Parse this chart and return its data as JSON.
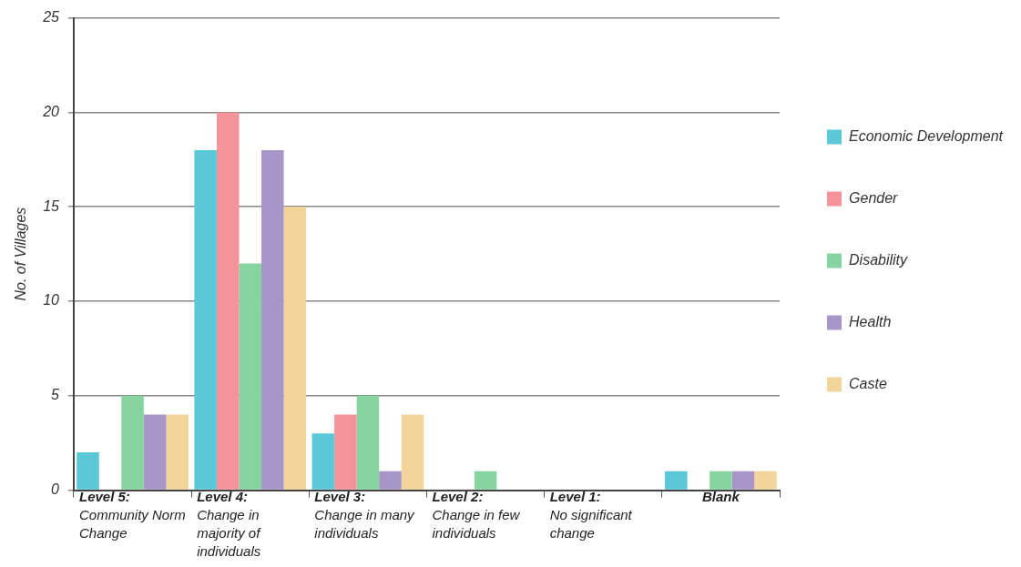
{
  "chart_data": {
    "type": "bar",
    "ylabel": "No. of Villages",
    "categories": [
      "Level 5: Community Norm Change",
      "Level 4: Change in majority of individuals",
      "Level 3: Change in many individuals",
      "Level 2: Change in few individuals",
      "Level 1: No significant change",
      "Blank"
    ],
    "series": [
      {
        "name": "Economic Development",
        "color": "#5bc8d8",
        "values": [
          2,
          18,
          3,
          0,
          0,
          1
        ]
      },
      {
        "name": "Gender",
        "color": "#f4939a",
        "values": [
          0,
          20,
          4,
          0,
          0,
          0
        ]
      },
      {
        "name": "Disability",
        "color": "#86d4a0",
        "values": [
          5,
          12,
          5,
          1,
          0,
          1
        ]
      },
      {
        "name": "Health",
        "color": "#a996c8",
        "values": [
          4,
          18,
          1,
          0,
          0,
          1
        ]
      },
      {
        "name": "Caste",
        "color": "#f1d59a",
        "values": [
          4,
          15,
          4,
          0,
          0,
          1
        ]
      }
    ],
    "ylim": [
      0,
      25
    ],
    "yticks": [
      0,
      5,
      10,
      15,
      20,
      25
    ],
    "grid": "y",
    "legend": "right"
  }
}
